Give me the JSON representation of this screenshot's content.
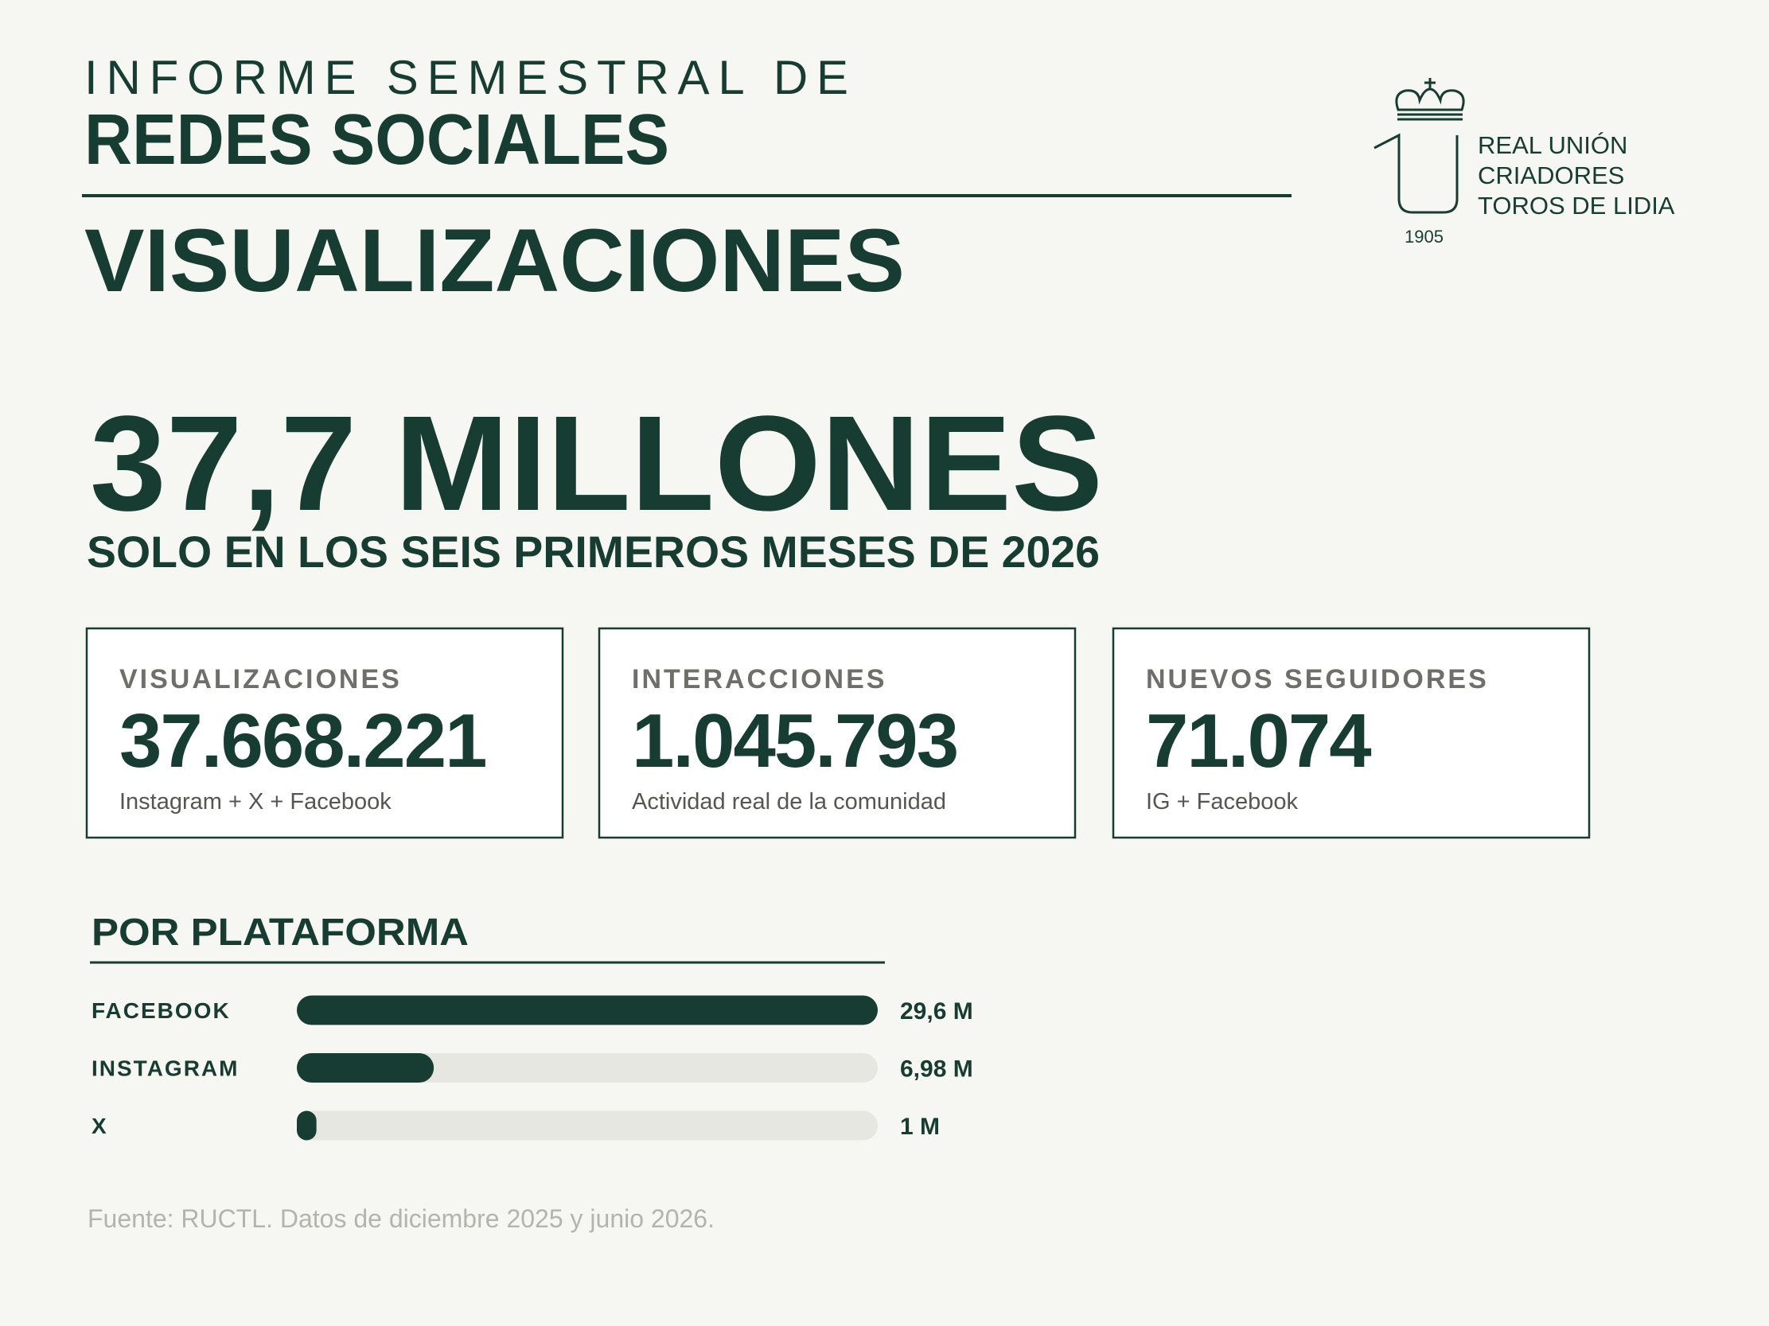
{
  "header": {
    "kicker": "INFORME SEMESTRAL DE",
    "title": "REDES SOCIALES",
    "section": "VISUALIZACIONES"
  },
  "logo": {
    "lines": [
      "REAL UNIÓN",
      "CRIADORES",
      "TOROS DE LIDIA"
    ],
    "year": "1905"
  },
  "headline": {
    "value": "37,7 MILLONES",
    "subtitle": "SOLO EN LOS SEIS PRIMEROS MESES DE 2026"
  },
  "kpis": [
    {
      "label": "VISUALIZACIONES",
      "value": "37.668.221",
      "note": "Instagram + X + Facebook"
    },
    {
      "label": "INTERACCIONES",
      "value": "1.045.793",
      "note": "Actividad real de la comunidad"
    },
    {
      "label": "NUEVOS SEGUIDORES",
      "value": "71.074",
      "note": "IG + Facebook"
    }
  ],
  "chart_data": {
    "type": "bar",
    "orientation": "horizontal",
    "title": "POR PLATAFORMA",
    "categories": [
      "FACEBOOK",
      "INSTAGRAM",
      "X"
    ],
    "values": [
      29.6,
      6.98,
      1
    ],
    "value_labels": [
      "29,6 M",
      "6,98 M",
      "1 M"
    ],
    "xlim": [
      0,
      29.6
    ],
    "color": "#173d33",
    "track_color": "#e7e7e2"
  },
  "footer": "Fuente: RUCTL. Datos de diciembre 2025 y junio 2026."
}
